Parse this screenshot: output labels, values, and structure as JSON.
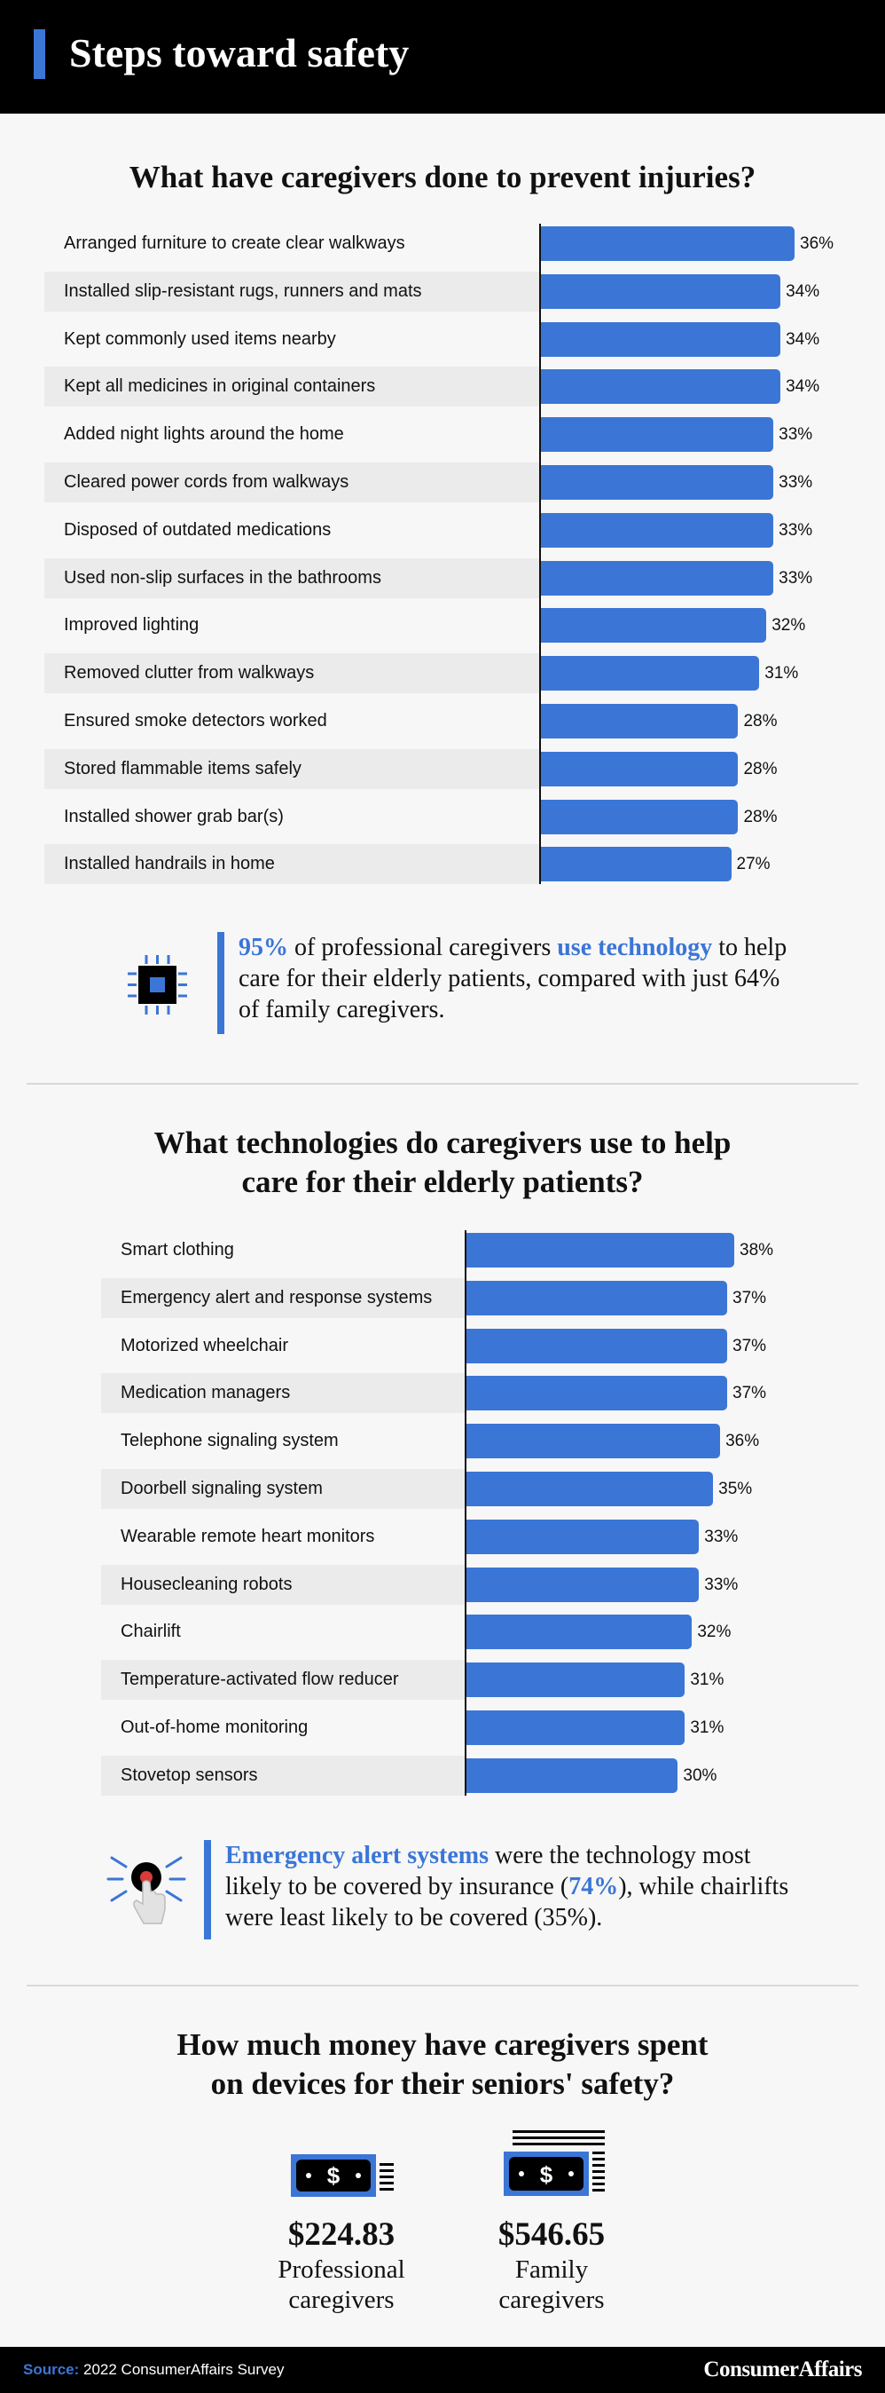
{
  "header": {
    "title": "Steps toward safety"
  },
  "section1": {
    "title": "What have caregivers done to prevent injuries?",
    "callout": {
      "highlight1": "95%",
      "text1": " of professional caregivers ",
      "highlight2": "use technology",
      "text2": "to help care for their elderly patients, compared with just 64% of family caregivers."
    }
  },
  "section2": {
    "title_line1": "What technologies do caregivers use to help",
    "title_line2": "care for their elderly patients?",
    "callout": {
      "highlight1": "Emergency alert systems",
      "text1": " were the technology most likely to be covered by insurance (",
      "highlight2": "74%",
      "text2": "), while chairlifts were least likely to be covered (35%)."
    }
  },
  "section3": {
    "title_line1": "How much money have caregivers spent",
    "title_line2": "on devices for their seniors' safety?",
    "items": [
      {
        "amount": "$224.83",
        "label_line1": "Professional",
        "label_line2": "caregivers"
      },
      {
        "amount": "$546.65",
        "label_line1": "Family",
        "label_line2": "caregivers"
      }
    ]
  },
  "footer": {
    "source_label": "Source:",
    "source_text": " 2022 ConsumerAffairs Survey",
    "brand": "ConsumerAffairs"
  },
  "colors": {
    "accent": "#3b76d6",
    "header_bg": "#000000",
    "row_shade": "#ebebeb"
  },
  "chart_data": [
    {
      "type": "bar",
      "orientation": "horizontal",
      "title": "What have caregivers done to prevent injuries?",
      "categories": [
        "Arranged furniture to create clear walkways",
        "Installed slip-resistant rugs, runners and mats",
        "Kept commonly used items nearby",
        "Kept all medicines in original containers",
        "Added night lights around the home",
        "Cleared power cords from walkways",
        "Disposed of outdated medications",
        "Used non-slip surfaces in the bathrooms",
        "Improved lighting",
        "Removed clutter from walkways",
        "Ensured smoke detectors worked",
        "Stored flammable items safely",
        "Installed shower grab bar(s)",
        "Installed handrails in home"
      ],
      "values": [
        36,
        34,
        34,
        34,
        33,
        33,
        33,
        33,
        32,
        31,
        28,
        28,
        28,
        27
      ],
      "value_labels": [
        "36%",
        "34%",
        "34%",
        "34%",
        "33%",
        "33%",
        "33%",
        "33%",
        "32%",
        "31%",
        "28%",
        "28%",
        "28%",
        "27%"
      ],
      "unit": "%",
      "xlim": [
        0,
        36
      ]
    },
    {
      "type": "bar",
      "orientation": "horizontal",
      "title": "What technologies do caregivers use to help care for their elderly patients?",
      "categories": [
        "Smart clothing",
        "Emergency alert and response systems",
        "Motorized wheelchair",
        "Medication managers",
        "Telephone signaling system",
        "Doorbell signaling system",
        "Wearable remote heart monitors",
        "Housecleaning robots",
        "Chairlift",
        "Temperature-activated flow reducer",
        "Out-of-home monitoring",
        "Stovetop sensors"
      ],
      "values": [
        38,
        37,
        37,
        37,
        36,
        35,
        33,
        33,
        32,
        31,
        31,
        30
      ],
      "value_labels": [
        "38%",
        "37%",
        "37%",
        "37%",
        "36%",
        "35%",
        "33%",
        "33%",
        "32%",
        "31%",
        "31%",
        "30%"
      ],
      "unit": "%",
      "xlim": [
        0,
        38
      ]
    }
  ]
}
